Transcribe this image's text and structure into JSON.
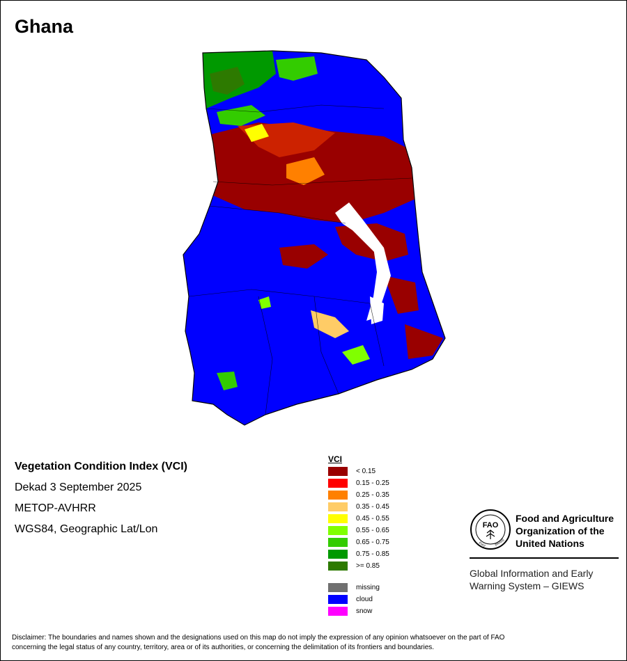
{
  "map": {
    "title": "Ghana",
    "region": "Ghana"
  },
  "info": {
    "index_title": "Vegetation Condition Index (VCI)",
    "period": "Dekad 3 September 2025",
    "sensor": "METOP-AVHRR",
    "projection": "WGS84, Geographic Lat/Lon"
  },
  "legend": {
    "title": "VCI",
    "classes": [
      {
        "label": "< 0.15",
        "color": "#990000"
      },
      {
        "label": "0.15 - 0.25",
        "color": "#ff0000"
      },
      {
        "label": "0.25 - 0.35",
        "color": "#ff8000"
      },
      {
        "label": "0.35 - 0.45",
        "color": "#ffcc66"
      },
      {
        "label": "0.45 - 0.55",
        "color": "#ffff00"
      },
      {
        "label": "0.55 - 0.65",
        "color": "#80ff00"
      },
      {
        "label": "0.65 - 0.75",
        "color": "#33cc00"
      },
      {
        "label": "0.75 - 0.85",
        "color": "#009900"
      },
      {
        "label": ">= 0.85",
        "color": "#2d7a00"
      }
    ],
    "special": [
      {
        "label": "missing",
        "color": "#707070"
      },
      {
        "label": "cloud",
        "color": "#0000ff"
      },
      {
        "label": "snow",
        "color": "#ff00ff"
      }
    ]
  },
  "org": {
    "line1": "Food and Agriculture",
    "line2": "Organization of the",
    "line3": "United Nations",
    "giews_line1": "Global Information and Early",
    "giews_line2": "Warning System – GIEWS",
    "logo_text": "FAO FIAT PANIS"
  },
  "disclaimer": {
    "line1": "Disclaimer: The boundaries and names shown and the designations used on this map do not imply the expression of any opinion whatsoever on the part of FAO",
    "line2": "concerning the legal status of any country, territory, area or of its authorities, or concerning the delimitation of its frontiers and boundaries."
  }
}
